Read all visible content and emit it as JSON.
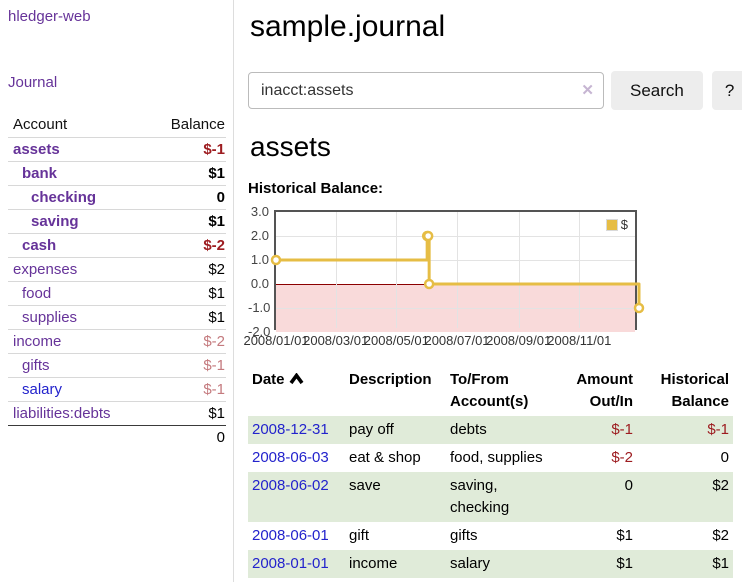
{
  "colors": {
    "accent_purple": "#663399",
    "link_blue": "#2323cc",
    "negative_strong": "#9d1c20",
    "negative_soft": "#c47a7e",
    "row_green": "#e0ebd9",
    "chart_line_gold": "#e6bd45",
    "chart_negative_region": "#f9dada",
    "chart_zero_line": "#8b0000",
    "button_gray": "#ededed"
  },
  "sidebar": {
    "title": "hledger-web",
    "journal_link": "Journal",
    "accounts": {
      "headers": [
        "Account",
        "Balance"
      ],
      "rows": [
        {
          "name": "assets",
          "balance": "$-1",
          "indent": 1,
          "matched": true,
          "neg": "strong"
        },
        {
          "name": "bank",
          "balance": "$1",
          "indent": 2,
          "matched": true
        },
        {
          "name": "checking",
          "balance": "0",
          "indent": 3,
          "matched": true
        },
        {
          "name": "saving",
          "balance": "$1",
          "indent": 3,
          "matched": true
        },
        {
          "name": "cash",
          "balance": "$-2",
          "indent": 2,
          "matched": true,
          "neg": "strong"
        },
        {
          "name": "expenses",
          "balance": "$2",
          "indent": 1
        },
        {
          "name": "food",
          "balance": "$1",
          "indent": 2
        },
        {
          "name": "supplies",
          "balance": "$1",
          "indent": 2
        },
        {
          "name": "income",
          "balance": "$-2",
          "indent": 1,
          "neg": "soft"
        },
        {
          "name": "gifts",
          "balance": "$-1",
          "indent": 2,
          "neg": "soft"
        },
        {
          "name": "salary",
          "balance": "$-1",
          "indent": 2,
          "neg": "soft",
          "visited": true
        },
        {
          "name": "liabilities:debts",
          "balance": "$1",
          "indent": 1
        }
      ],
      "total": "0"
    }
  },
  "main": {
    "title": "sample.journal",
    "search": {
      "value": "inacct:assets",
      "clear_icon": "✕",
      "search_button": "Search",
      "help_button": "?"
    },
    "section_title": "assets",
    "chart_heading": "Historical Balance:",
    "chart_data": {
      "type": "line",
      "title": "Historical Balance:",
      "series": [
        {
          "name": "$",
          "color": "#e6bd45",
          "points": [
            [
              "2008-01-01",
              1
            ],
            [
              "2008-06-01",
              2
            ],
            [
              "2008-06-02",
              2
            ],
            [
              "2008-06-03",
              0
            ],
            [
              "2008-12-31",
              -1
            ]
          ]
        }
      ],
      "step": true,
      "x_range": [
        "2008-01-01",
        "2008-12-31"
      ],
      "x_ticks": [
        "2008/01/01",
        "2008/03/01",
        "2008/05/01",
        "2008/07/01",
        "2008/09/01",
        "2008/11/01"
      ],
      "y_ticks": [
        3.0,
        2.0,
        1.0,
        0.0,
        -1.0,
        -2.0
      ],
      "ylim": [
        -2,
        3
      ],
      "grid": true,
      "legend": {
        "position": "top-right",
        "label": "$"
      }
    },
    "register": {
      "headers": [
        "Date",
        "Description",
        "To/From Account(s)",
        "Amount Out/In",
        "Historical Balance"
      ],
      "sort": "date-ascending",
      "rows": [
        {
          "date": "2008-12-31",
          "description": "pay off",
          "accounts": "debts",
          "amount": "$-1",
          "balance": "$-1"
        },
        {
          "date": "2008-06-03",
          "description": "eat & shop",
          "accounts": "food, supplies",
          "amount": "$-2",
          "balance": "0"
        },
        {
          "date": "2008-06-02",
          "description": "save",
          "accounts": "saving, checking",
          "amount": "0",
          "balance": "$2"
        },
        {
          "date": "2008-06-01",
          "description": "gift",
          "accounts": "gifts",
          "amount": "$1",
          "balance": "$2"
        },
        {
          "date": "2008-01-01",
          "description": "income",
          "accounts": "salary",
          "amount": "$1",
          "balance": "$1"
        }
      ]
    }
  }
}
